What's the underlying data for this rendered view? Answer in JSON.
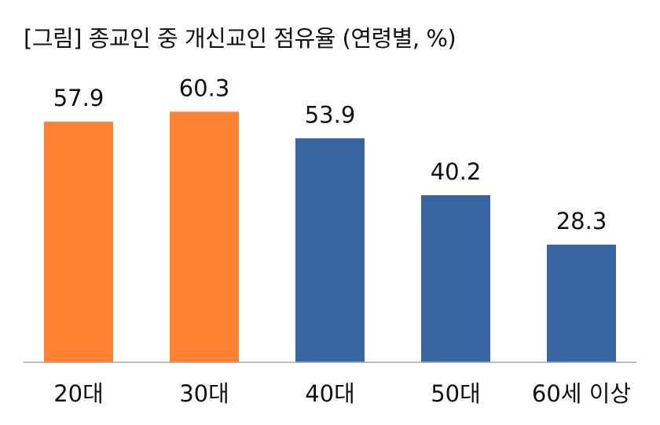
{
  "chart_data": {
    "type": "bar",
    "title": "[그림] 종교인 중 개신교인 점유율 (연령별, %)",
    "categories": [
      "20대",
      "30대",
      "40대",
      "50대",
      "60세 이상"
    ],
    "values": [
      57.9,
      60.3,
      53.9,
      40.2,
      28.3
    ],
    "bar_colors": [
      "#FF8030",
      "#FF8030",
      "#3765A1",
      "#3765A1",
      "#3765A1"
    ],
    "axis_color": "#A6A6A6",
    "xlabel": "",
    "ylabel": "",
    "ylim": [
      0,
      70
    ],
    "grid": false,
    "legend": "none",
    "data_labels": [
      "57.9",
      "60.3",
      "53.9",
      "40.2",
      "28.3"
    ]
  }
}
